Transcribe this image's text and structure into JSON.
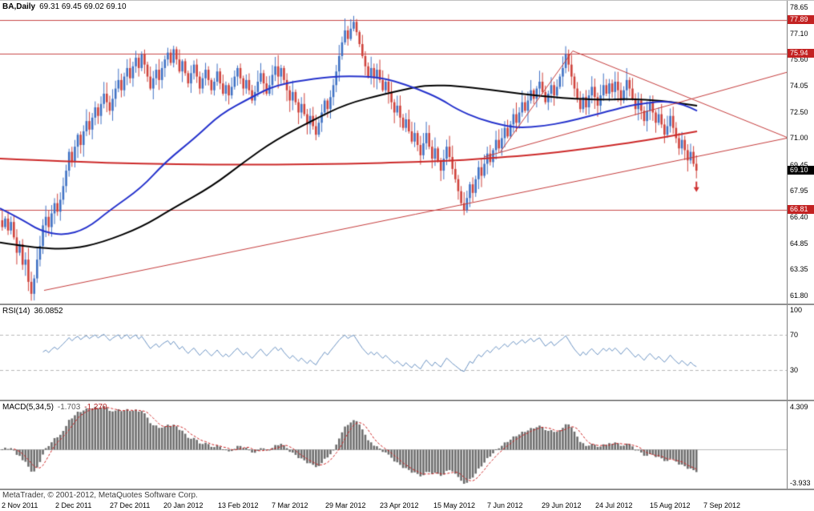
{
  "header": {
    "symbol": "BA,Daily",
    "quote": "69.31 69.45 69.02 69.10"
  },
  "footer": {
    "copyright": "MetaTrader, © 2001-2012, MetaQuotes Software Corp."
  },
  "colors": {
    "candle_up": "#4072c4",
    "candle_down": "#cf433c",
    "ma_fast": "#2633cc",
    "ma_mid": "#000000",
    "ma_slow": "#cc2929",
    "trendline": "#c43b3b",
    "hline": "#c84848",
    "badge_red": "#c32222",
    "badge_black": "#000000",
    "rsi_line": "#6a92c2",
    "level_dash": "#b8b8b8",
    "macd_bar": "#6e6e6e",
    "macd_signal": "#cc2424",
    "arrow": "#cf3333",
    "axis_text": "#000000"
  },
  "chart_data": {
    "type": "candlestick",
    "title": "BA,Daily",
    "last_quote": {
      "open": 69.31,
      "high": 69.45,
      "low": 69.02,
      "close": 69.1
    },
    "x_axis": {
      "labels": [
        "2 Nov 2011",
        "2 Dec 2011",
        "27 Dec 2011",
        "20 Jan 2012",
        "13 Feb 2012",
        "7 Mar 2012",
        "29 Mar 2012",
        "23 Apr 2012",
        "15 May 2012",
        "7 Jun 2012",
        "29 Jun 2012",
        "24 Jul 2012",
        "15 Aug 2012",
        "7 Sep 2012"
      ]
    },
    "y_axis": {
      "min": 61.33,
      "max": 79.03,
      "tick_labels": [
        "78.65",
        "77.10",
        "75.60",
        "74.05",
        "72.50",
        "71.00",
        "69.45",
        "67.95",
        "66.40",
        "64.85",
        "63.35",
        "61.80"
      ]
    },
    "candle_span": 0.886,
    "series": {
      "closes": [
        65.8,
        66.3,
        65.6,
        66.1,
        65.2,
        64.3,
        64.8,
        63.6,
        63.9,
        62.6,
        61.9,
        62.8,
        63.9,
        64.7,
        65.9,
        66.4,
        65.8,
        66.6,
        67.2,
        66.7,
        67.4,
        68.2,
        69.1,
        70.2,
        69.6,
        70.5,
        71.2,
        70.6,
        71.4,
        72.0,
        71.5,
        72.2,
        72.8,
        72.3,
        73.0,
        73.6,
        73.1,
        72.6,
        73.3,
        73.9,
        74.4,
        73.8,
        74.6,
        75.1,
        74.5,
        75.2,
        75.7,
        75.1,
        75.9,
        75.3,
        74.6,
        73.9,
        74.5,
        75.0,
        74.4,
        75.1,
        75.6,
        76.0,
        75.4,
        76.2,
        75.6,
        74.9,
        75.5,
        74.8,
        74.2,
        74.8,
        75.3,
        74.6,
        73.9,
        74.5,
        75.0,
        74.4,
        73.8,
        74.3,
        74.9,
        74.2,
        73.6,
        74.1,
        73.5,
        74.0,
        74.6,
        75.1,
        74.5,
        73.9,
        74.4,
        73.8,
        73.2,
        73.7,
        74.3,
        74.8,
        74.2,
        73.6,
        74.1,
        74.7,
        75.2,
        74.6,
        75.1,
        74.4,
        73.8,
        73.2,
        73.7,
        73.1,
        72.5,
        73.0,
        72.4,
        71.8,
        72.3,
        71.7,
        71.2,
        71.9,
        72.5,
        73.2,
        72.7,
        73.4,
        74.1,
        74.9,
        75.8,
        76.6,
        77.3,
        76.8,
        77.4,
        77.8,
        77.2,
        76.5,
        75.8,
        75.2,
        74.6,
        75.1,
        74.5,
        75.0,
        74.4,
        73.8,
        74.3,
        73.7,
        73.1,
        72.5,
        72.9,
        72.2,
        71.6,
        72.1,
        71.4,
        70.8,
        71.3,
        70.6,
        70.0,
        70.7,
        71.3,
        70.5,
        69.8,
        70.4,
        69.7,
        69.1,
        69.8,
        70.5,
        69.9,
        69.2,
        68.6,
        67.9,
        67.2,
        66.8,
        67.5,
        68.3,
        67.8,
        68.6,
        69.3,
        68.8,
        69.5,
        70.1,
        69.6,
        70.3,
        70.9,
        70.4,
        71.0,
        71.6,
        71.1,
        71.8,
        72.4,
        71.9,
        72.5,
        73.1,
        72.6,
        73.2,
        73.8,
        73.3,
        73.9,
        74.3,
        73.7,
        73.1,
        73.6,
        74.1,
        73.5,
        74.0,
        74.6,
        75.1,
        75.9,
        75.3,
        74.6,
        73.9,
        73.3,
        72.7,
        73.4,
        72.8,
        73.5,
        74.0,
        73.4,
        72.9,
        73.5,
        74.1,
        73.6,
        74.2,
        73.7,
        74.3,
        73.8,
        73.2,
        73.8,
        74.4,
        73.9,
        73.3,
        72.7,
        73.2,
        72.6,
        72.0,
        72.6,
        73.1,
        72.5,
        71.9,
        72.4,
        71.8,
        71.2,
        71.7,
        72.3,
        71.6,
        71.0,
        70.4,
        70.9,
        70.3,
        69.7,
        70.2,
        69.5,
        69.1
      ]
    },
    "horizontal_lines": [
      {
        "price": 77.89,
        "label": "77.89"
      },
      {
        "price": 75.94,
        "label": "75.94"
      },
      {
        "price": 66.81,
        "label": "66.81"
      }
    ],
    "current_price": {
      "price": 69.1,
      "label": "69.10"
    },
    "sell_arrow": {
      "note": "red down arrow below last candle"
    },
    "trendlines": [
      {
        "x1": 0.056,
        "price1": 62.1,
        "x2": 1.0,
        "price2": 71.0
      },
      {
        "x1": 0.615,
        "price1": 69.9,
        "x2": 1.0,
        "price2": 74.85
      },
      {
        "x1": 0.728,
        "price1": 76.1,
        "x2": 1.0,
        "price2": 71.05
      },
      {
        "x1": 0.636,
        "price1": 70.2,
        "x2": 0.728,
        "price2": 76.1
      }
    ],
    "moving_averages": {
      "slow_red": [
        [
          0.0,
          69.8
        ],
        [
          0.09,
          69.62
        ],
        [
          0.18,
          69.5
        ],
        [
          0.27,
          69.45
        ],
        [
          0.35,
          69.45
        ],
        [
          0.44,
          69.5
        ],
        [
          0.53,
          69.6
        ],
        [
          0.58,
          69.7
        ],
        [
          0.62,
          69.82
        ],
        [
          0.67,
          70.0
        ],
        [
          0.71,
          70.18
        ],
        [
          0.75,
          70.42
        ],
        [
          0.8,
          70.72
        ],
        [
          0.84,
          71.02
        ],
        [
          0.886,
          71.4
        ]
      ],
      "mid_black": [
        [
          0.0,
          64.9
        ],
        [
          0.04,
          64.6
        ],
        [
          0.09,
          64.5
        ],
        [
          0.13,
          64.9
        ],
        [
          0.18,
          65.8
        ],
        [
          0.22,
          66.9
        ],
        [
          0.27,
          68.2
        ],
        [
          0.31,
          69.6
        ],
        [
          0.35,
          70.9
        ],
        [
          0.4,
          72.1
        ],
        [
          0.44,
          73.0
        ],
        [
          0.49,
          73.6
        ],
        [
          0.53,
          74.0
        ],
        [
          0.55,
          74.1
        ],
        [
          0.58,
          74.05
        ],
        [
          0.62,
          73.85
        ],
        [
          0.66,
          73.6
        ],
        [
          0.7,
          73.4
        ],
        [
          0.73,
          73.3
        ],
        [
          0.77,
          73.25
        ],
        [
          0.8,
          73.3
        ],
        [
          0.84,
          73.2
        ],
        [
          0.886,
          72.9
        ]
      ],
      "fast_blue": [
        [
          0.0,
          66.9
        ],
        [
          0.03,
          66.2
        ],
        [
          0.05,
          65.6
        ],
        [
          0.08,
          65.3
        ],
        [
          0.11,
          65.7
        ],
        [
          0.14,
          66.8
        ],
        [
          0.18,
          68.1
        ],
        [
          0.21,
          69.6
        ],
        [
          0.25,
          71.1
        ],
        [
          0.28,
          72.4
        ],
        [
          0.32,
          73.4
        ],
        [
          0.35,
          74.1
        ],
        [
          0.4,
          74.5
        ],
        [
          0.44,
          74.65
        ],
        [
          0.48,
          74.55
        ],
        [
          0.5,
          74.35
        ],
        [
          0.53,
          73.9
        ],
        [
          0.56,
          73.3
        ],
        [
          0.58,
          72.7
        ],
        [
          0.61,
          72.1
        ],
        [
          0.64,
          71.75
        ],
        [
          0.66,
          71.6
        ],
        [
          0.69,
          71.7
        ],
        [
          0.72,
          71.95
        ],
        [
          0.75,
          72.3
        ],
        [
          0.78,
          72.65
        ],
        [
          0.8,
          72.9
        ],
        [
          0.83,
          73.1
        ],
        [
          0.85,
          73.15
        ],
        [
          0.87,
          72.95
        ],
        [
          0.886,
          72.6
        ]
      ]
    },
    "indicators": {
      "rsi": {
        "label": "RSI(14)",
        "value": "36.0852",
        "period": 14,
        "levels": [
          70,
          30
        ],
        "axis_labels": [
          "100",
          "70",
          "30"
        ]
      },
      "macd": {
        "label": "MACD(5,34,5)",
        "value_main": "-1.703",
        "value_signal": "-1.270",
        "fast": 5,
        "slow": 34,
        "signal": 5,
        "axis_max_label": "4.309",
        "axis_min_label": "-3.933"
      }
    }
  }
}
